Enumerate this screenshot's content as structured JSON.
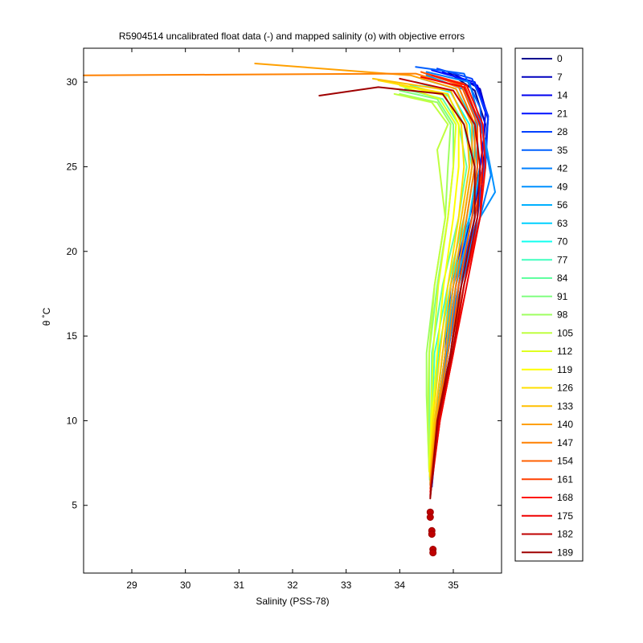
{
  "chart_data": {
    "type": "line",
    "title": "R5904514 uncalibrated float data (-) and mapped salinity (o) with objective errors",
    "xlabel": "Salinity (PSS-78)",
    "ylabel": "θ ˚C",
    "xlim": [
      28.1,
      35.9
    ],
    "ylim": [
      1.0,
      32.0
    ],
    "xticks": [
      "29",
      "30",
      "31",
      "32",
      "33",
      "34",
      "35"
    ],
    "yticks": [
      "5",
      "10",
      "15",
      "20",
      "25",
      "30"
    ],
    "grid": false,
    "legend_position": "outside-right",
    "legend": [
      "0",
      "7",
      "14",
      "21",
      "28",
      "35",
      "42",
      "49",
      "56",
      "63",
      "70",
      "77",
      "84",
      "91",
      "98",
      "105",
      "112",
      "119",
      "126",
      "133",
      "140",
      "147",
      "154",
      "161",
      "168",
      "175",
      "182",
      "189"
    ],
    "legend_colors": [
      "#00008f",
      "#0000bf",
      "#0000ef",
      "#0010ff",
      "#0040ff",
      "#0060ff",
      "#0080ff",
      "#0090ff",
      "#00b0ff",
      "#00d0ff",
      "#10ffef",
      "#40ffbf",
      "#60ff9f",
      "#80ff80",
      "#9fff60",
      "#bfff40",
      "#dfff20",
      "#ffff00",
      "#ffdf00",
      "#ffbf00",
      "#ffa000",
      "#ff8000",
      "#ff6000",
      "#ff4000",
      "#ff1000",
      "#ef0000",
      "#bf0000",
      "#9f0000"
    ],
    "mapped_salinity_points": [
      {
        "x": 34.57,
        "y": 4.6
      },
      {
        "x": 34.57,
        "y": 4.3
      },
      {
        "x": 34.6,
        "y": 3.5
      },
      {
        "x": 34.6,
        "y": 3.3
      },
      {
        "x": 34.62,
        "y": 2.4
      },
      {
        "x": 34.62,
        "y": 2.2
      }
    ],
    "series": [
      {
        "name": "0",
        "color": "#00008f",
        "values": [
          [
            34.6,
            6.3
          ],
          [
            34.7,
            10
          ],
          [
            34.95,
            14
          ],
          [
            35.1,
            18
          ],
          [
            35.3,
            22
          ],
          [
            35.5,
            25
          ],
          [
            35.6,
            27.5
          ],
          [
            35.4,
            29.5
          ],
          [
            34.9,
            30.6
          ]
        ]
      },
      {
        "name": "7",
        "color": "#0000bf",
        "values": [
          [
            34.6,
            6.2
          ],
          [
            34.68,
            10
          ],
          [
            34.9,
            14
          ],
          [
            35.05,
            18
          ],
          [
            35.35,
            22
          ],
          [
            35.55,
            25
          ],
          [
            35.65,
            27.8
          ],
          [
            35.5,
            29.6
          ],
          [
            35.0,
            30.5
          ]
        ]
      },
      {
        "name": "14",
        "color": "#0000ef",
        "values": [
          [
            34.6,
            6.2
          ],
          [
            34.7,
            10
          ],
          [
            34.85,
            14
          ],
          [
            34.95,
            18
          ],
          [
            35.3,
            22
          ],
          [
            35.6,
            25.5
          ],
          [
            35.65,
            28
          ],
          [
            35.45,
            29.8
          ],
          [
            34.8,
            30.6
          ]
        ]
      },
      {
        "name": "21",
        "color": "#0010ff",
        "values": [
          [
            34.6,
            6.1
          ],
          [
            34.7,
            10
          ],
          [
            34.85,
            14
          ],
          [
            35.0,
            18
          ],
          [
            35.35,
            22
          ],
          [
            35.55,
            26
          ],
          [
            35.6,
            28.2
          ],
          [
            35.4,
            30.0
          ],
          [
            34.6,
            30.7
          ]
        ]
      },
      {
        "name": "28",
        "color": "#0040ff",
        "values": [
          [
            34.6,
            6.1
          ],
          [
            34.72,
            10
          ],
          [
            34.9,
            14
          ],
          [
            35.1,
            18
          ],
          [
            35.4,
            22
          ],
          [
            35.6,
            25
          ],
          [
            35.65,
            28
          ],
          [
            35.35,
            30.2
          ],
          [
            34.7,
            30.8
          ]
        ]
      },
      {
        "name": "35",
        "color": "#0060ff",
        "values": [
          [
            34.58,
            6.0
          ],
          [
            34.7,
            10
          ],
          [
            34.9,
            14
          ],
          [
            35.1,
            18
          ],
          [
            35.45,
            22
          ],
          [
            35.6,
            25.5
          ],
          [
            35.5,
            28.5
          ],
          [
            35.2,
            30.5
          ],
          [
            34.3,
            30.9
          ]
        ]
      },
      {
        "name": "42",
        "color": "#0080ff",
        "values": [
          [
            34.58,
            6.0
          ],
          [
            34.7,
            10
          ],
          [
            34.88,
            14
          ],
          [
            35.15,
            18
          ],
          [
            35.5,
            22
          ],
          [
            35.7,
            24.5
          ],
          [
            35.55,
            27
          ],
          [
            35.3,
            30.0
          ],
          [
            34.5,
            30.6
          ]
        ]
      },
      {
        "name": "49",
        "color": "#0090ff",
        "values": [
          [
            34.58,
            6.0
          ],
          [
            34.68,
            10
          ],
          [
            34.85,
            14
          ],
          [
            35.1,
            18
          ],
          [
            35.5,
            22
          ],
          [
            35.78,
            23.5
          ],
          [
            35.6,
            26.5
          ],
          [
            35.25,
            29.5
          ],
          [
            34.5,
            30.4
          ]
        ]
      },
      {
        "name": "56",
        "color": "#00b0ff",
        "values": [
          [
            34.58,
            6.0
          ],
          [
            34.68,
            10
          ],
          [
            34.85,
            14
          ],
          [
            35.05,
            18
          ],
          [
            35.35,
            22
          ],
          [
            35.5,
            25
          ],
          [
            35.4,
            28
          ],
          [
            35.15,
            29.8
          ],
          [
            34.7,
            30.3
          ]
        ]
      },
      {
        "name": "63",
        "color": "#00d0ff",
        "values": [
          [
            34.57,
            6.2
          ],
          [
            34.66,
            10
          ],
          [
            34.8,
            14
          ],
          [
            35.0,
            18
          ],
          [
            35.3,
            22
          ],
          [
            35.45,
            25
          ],
          [
            35.35,
            27.8
          ],
          [
            35.05,
            29.6
          ],
          [
            34.4,
            30.2
          ]
        ]
      },
      {
        "name": "70",
        "color": "#10ffef",
        "values": [
          [
            34.57,
            6.3
          ],
          [
            34.62,
            10
          ],
          [
            34.72,
            14
          ],
          [
            34.95,
            18
          ],
          [
            35.25,
            22
          ],
          [
            35.4,
            25
          ],
          [
            35.3,
            27.5
          ],
          [
            34.95,
            29.4
          ],
          [
            34.3,
            30.0
          ]
        ]
      },
      {
        "name": "77",
        "color": "#40ffbf",
        "values": [
          [
            34.57,
            6.5
          ],
          [
            34.6,
            10
          ],
          [
            34.65,
            14
          ],
          [
            34.9,
            18
          ],
          [
            35.2,
            22
          ],
          [
            35.35,
            25
          ],
          [
            35.2,
            27.5
          ],
          [
            34.9,
            29.2
          ],
          [
            34.2,
            29.8
          ]
        ]
      },
      {
        "name": "84",
        "color": "#60ff9f",
        "values": [
          [
            34.56,
            6.5
          ],
          [
            34.58,
            10
          ],
          [
            34.6,
            14
          ],
          [
            34.8,
            18
          ],
          [
            35.1,
            22
          ],
          [
            35.25,
            25
          ],
          [
            35.1,
            27.5
          ],
          [
            34.8,
            29.0
          ],
          [
            34.1,
            29.6
          ]
        ]
      },
      {
        "name": "91",
        "color": "#80ff80",
        "values": [
          [
            34.56,
            6.6
          ],
          [
            34.55,
            10
          ],
          [
            34.55,
            14
          ],
          [
            34.7,
            18
          ],
          [
            34.9,
            22
          ],
          [
            35.0,
            25
          ],
          [
            35.0,
            27.5
          ],
          [
            34.7,
            29.0
          ],
          [
            34.0,
            29.5
          ]
        ]
      },
      {
        "name": "98",
        "color": "#9fff60",
        "values": [
          [
            34.55,
            7.0
          ],
          [
            34.5,
            11.5
          ],
          [
            34.5,
            14
          ],
          [
            34.65,
            18
          ],
          [
            34.85,
            22
          ],
          [
            34.9,
            25
          ],
          [
            34.95,
            27.5
          ],
          [
            34.7,
            28.8
          ],
          [
            34.0,
            29.3
          ]
        ]
      },
      {
        "name": "105",
        "color": "#bfff40",
        "values": [
          [
            34.55,
            7.0
          ],
          [
            34.52,
            10
          ],
          [
            34.55,
            14
          ],
          [
            34.65,
            18
          ],
          [
            34.85,
            22
          ],
          [
            34.7,
            26
          ],
          [
            34.9,
            27.5
          ],
          [
            34.6,
            28.8
          ],
          [
            33.9,
            29.3
          ]
        ]
      },
      {
        "name": "112",
        "color": "#dfff20",
        "values": [
          [
            34.55,
            7.0
          ],
          [
            34.58,
            10
          ],
          [
            34.62,
            14
          ],
          [
            34.72,
            18
          ],
          [
            34.9,
            22
          ],
          [
            35.0,
            25
          ],
          [
            35.05,
            27.5
          ],
          [
            34.75,
            29.0
          ],
          [
            34.0,
            29.8
          ]
        ]
      },
      {
        "name": "119",
        "color": "#ffff00",
        "values": [
          [
            34.56,
            6.8
          ],
          [
            34.6,
            10
          ],
          [
            34.7,
            14
          ],
          [
            34.82,
            18
          ],
          [
            35.0,
            22
          ],
          [
            35.1,
            25
          ],
          [
            35.1,
            27.5
          ],
          [
            34.85,
            29.2
          ],
          [
            33.8,
            30.0
          ]
        ]
      },
      {
        "name": "126",
        "color": "#ffdf00",
        "values": [
          [
            34.56,
            6.7
          ],
          [
            34.62,
            10
          ],
          [
            34.75,
            14
          ],
          [
            34.9,
            18
          ],
          [
            35.1,
            22
          ],
          [
            35.2,
            25
          ],
          [
            35.15,
            27.5
          ],
          [
            34.9,
            29.3
          ],
          [
            33.6,
            30.1
          ]
        ]
      },
      {
        "name": "133",
        "color": "#ffbf00",
        "values": [
          [
            34.57,
            6.5
          ],
          [
            34.65,
            10
          ],
          [
            34.8,
            14
          ],
          [
            34.95,
            18
          ],
          [
            35.15,
            22
          ],
          [
            35.3,
            25
          ],
          [
            35.25,
            27.5
          ],
          [
            34.95,
            29.5
          ],
          [
            33.5,
            30.2
          ]
        ]
      },
      {
        "name": "140",
        "color": "#ffa000",
        "values": [
          [
            34.57,
            6.4
          ],
          [
            34.68,
            10
          ],
          [
            34.85,
            14
          ],
          [
            35.0,
            18
          ],
          [
            35.2,
            22
          ],
          [
            35.35,
            25
          ],
          [
            35.35,
            27.5
          ],
          [
            35.05,
            29.6
          ],
          [
            34.2,
            30.4
          ],
          [
            31.3,
            31.1
          ]
        ]
      },
      {
        "name": "147",
        "color": "#ff8000",
        "values": [
          [
            34.57,
            6.3
          ],
          [
            34.7,
            10
          ],
          [
            34.9,
            14
          ],
          [
            35.05,
            18
          ],
          [
            35.25,
            22
          ],
          [
            35.4,
            25
          ],
          [
            35.4,
            27.5
          ],
          [
            35.1,
            29.7
          ],
          [
            34.3,
            30.5
          ],
          [
            28.1,
            30.4
          ]
        ]
      },
      {
        "name": "154",
        "color": "#ff6000",
        "values": [
          [
            34.57,
            6.2
          ],
          [
            34.72,
            10
          ],
          [
            34.95,
            14
          ],
          [
            35.1,
            18
          ],
          [
            35.35,
            22
          ],
          [
            35.45,
            25
          ],
          [
            35.45,
            27.5
          ],
          [
            35.15,
            29.8
          ],
          [
            34.4,
            30.6
          ]
        ]
      },
      {
        "name": "161",
        "color": "#ff4000",
        "values": [
          [
            34.57,
            6.0
          ],
          [
            34.75,
            10
          ],
          [
            35.0,
            14
          ],
          [
            35.15,
            18
          ],
          [
            35.4,
            22
          ],
          [
            35.55,
            25
          ],
          [
            35.5,
            27.5
          ],
          [
            35.2,
            29.9
          ],
          [
            34.5,
            30.5
          ]
        ]
      },
      {
        "name": "168",
        "color": "#ff1000",
        "values": [
          [
            34.57,
            5.8
          ],
          [
            34.75,
            10
          ],
          [
            35.0,
            14
          ],
          [
            35.2,
            18
          ],
          [
            35.5,
            22
          ],
          [
            35.6,
            25
          ],
          [
            35.55,
            27.5
          ],
          [
            35.25,
            29.8
          ],
          [
            34.6,
            30.4
          ]
        ]
      },
      {
        "name": "175",
        "color": "#ef0000",
        "values": [
          [
            34.57,
            5.6
          ],
          [
            34.75,
            10
          ],
          [
            35.0,
            14
          ],
          [
            35.25,
            18
          ],
          [
            35.5,
            22
          ],
          [
            35.55,
            25
          ],
          [
            35.5,
            27.5
          ],
          [
            35.2,
            29.7
          ],
          [
            34.4,
            30.3
          ]
        ]
      },
      {
        "name": "182",
        "color": "#bf0000",
        "values": [
          [
            34.57,
            5.5
          ],
          [
            34.72,
            10
          ],
          [
            34.98,
            14
          ],
          [
            35.2,
            18
          ],
          [
            35.45,
            22
          ],
          [
            35.5,
            25
          ],
          [
            35.4,
            27.5
          ],
          [
            35.0,
            29.5
          ],
          [
            34.0,
            30.2
          ]
        ]
      },
      {
        "name": "189",
        "color": "#9f0000",
        "values": [
          [
            34.57,
            5.4
          ],
          [
            34.7,
            10
          ],
          [
            34.95,
            14
          ],
          [
            35.15,
            18
          ],
          [
            35.4,
            22
          ],
          [
            35.4,
            25
          ],
          [
            35.2,
            27.5
          ],
          [
            34.8,
            29.3
          ],
          [
            33.6,
            29.7
          ],
          [
            32.5,
            29.2
          ]
        ]
      }
    ]
  }
}
